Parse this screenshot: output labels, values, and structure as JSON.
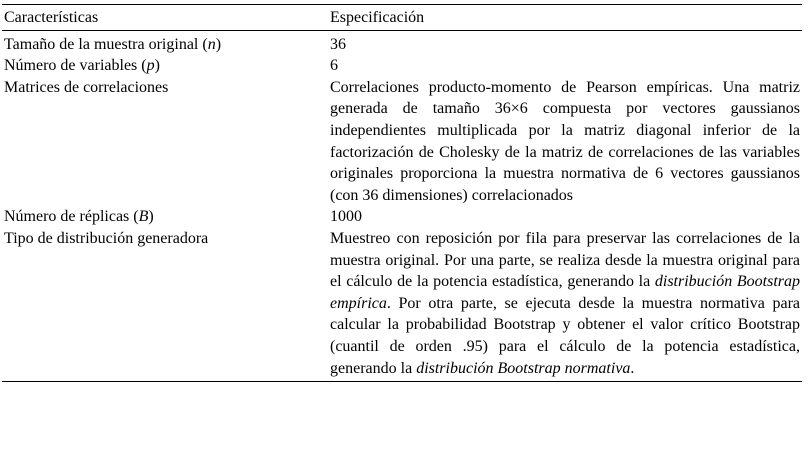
{
  "table": {
    "headers": [
      "Características",
      "Especificación"
    ],
    "rows": [
      {
        "label": [
          {
            "t": "Tamaño de la muestra original ("
          },
          {
            "t": "n",
            "i": true
          },
          {
            "t": ")"
          }
        ],
        "spec": [
          {
            "t": "36"
          }
        ]
      },
      {
        "label": [
          {
            "t": "Número de variables ("
          },
          {
            "t": "p",
            "i": true
          },
          {
            "t": ")"
          }
        ],
        "spec": [
          {
            "t": "6"
          }
        ]
      },
      {
        "label": [
          {
            "t": "Matrices de correlaciones"
          }
        ],
        "spec": [
          {
            "t": "Correlaciones producto-momento de Pearson empíricas. Una matriz generada de tamaño 36×6 compuesta por vectores gaussianos independientes multiplicada por la matriz diagonal inferior de la factorización de Cholesky de la matriz de correlaciones de las variables originales proporciona la muestra normativa de 6 vectores gaussianos (con 36 dimensiones) correlacionados"
          }
        ]
      },
      {
        "label": [
          {
            "t": "Número de réplicas ("
          },
          {
            "t": "B",
            "i": true
          },
          {
            "t": ")"
          }
        ],
        "spec": [
          {
            "t": "1000"
          }
        ]
      },
      {
        "label": [
          {
            "t": "Tipo de distribución generadora"
          }
        ],
        "spec": [
          {
            "t": "Muestreo con reposición por fila para preservar las correlaciones de la muestra original. Por una parte, se realiza desde la muestra original para el cálculo de la potencia estadística, generando la "
          },
          {
            "t": "distribución Bootstrap empírica",
            "i": true
          },
          {
            "t": ". Por otra parte, se ejecuta desde la muestra normativa para calcular la probabilidad Bootstrap y obtener el valor crítico Bootstrap (cuantil de orden .95) para el cálculo de la potencia estadística, generando la "
          },
          {
            "t": "distribución Bootstrap normativa",
            "i": true
          },
          {
            "t": "."
          }
        ]
      }
    ]
  }
}
